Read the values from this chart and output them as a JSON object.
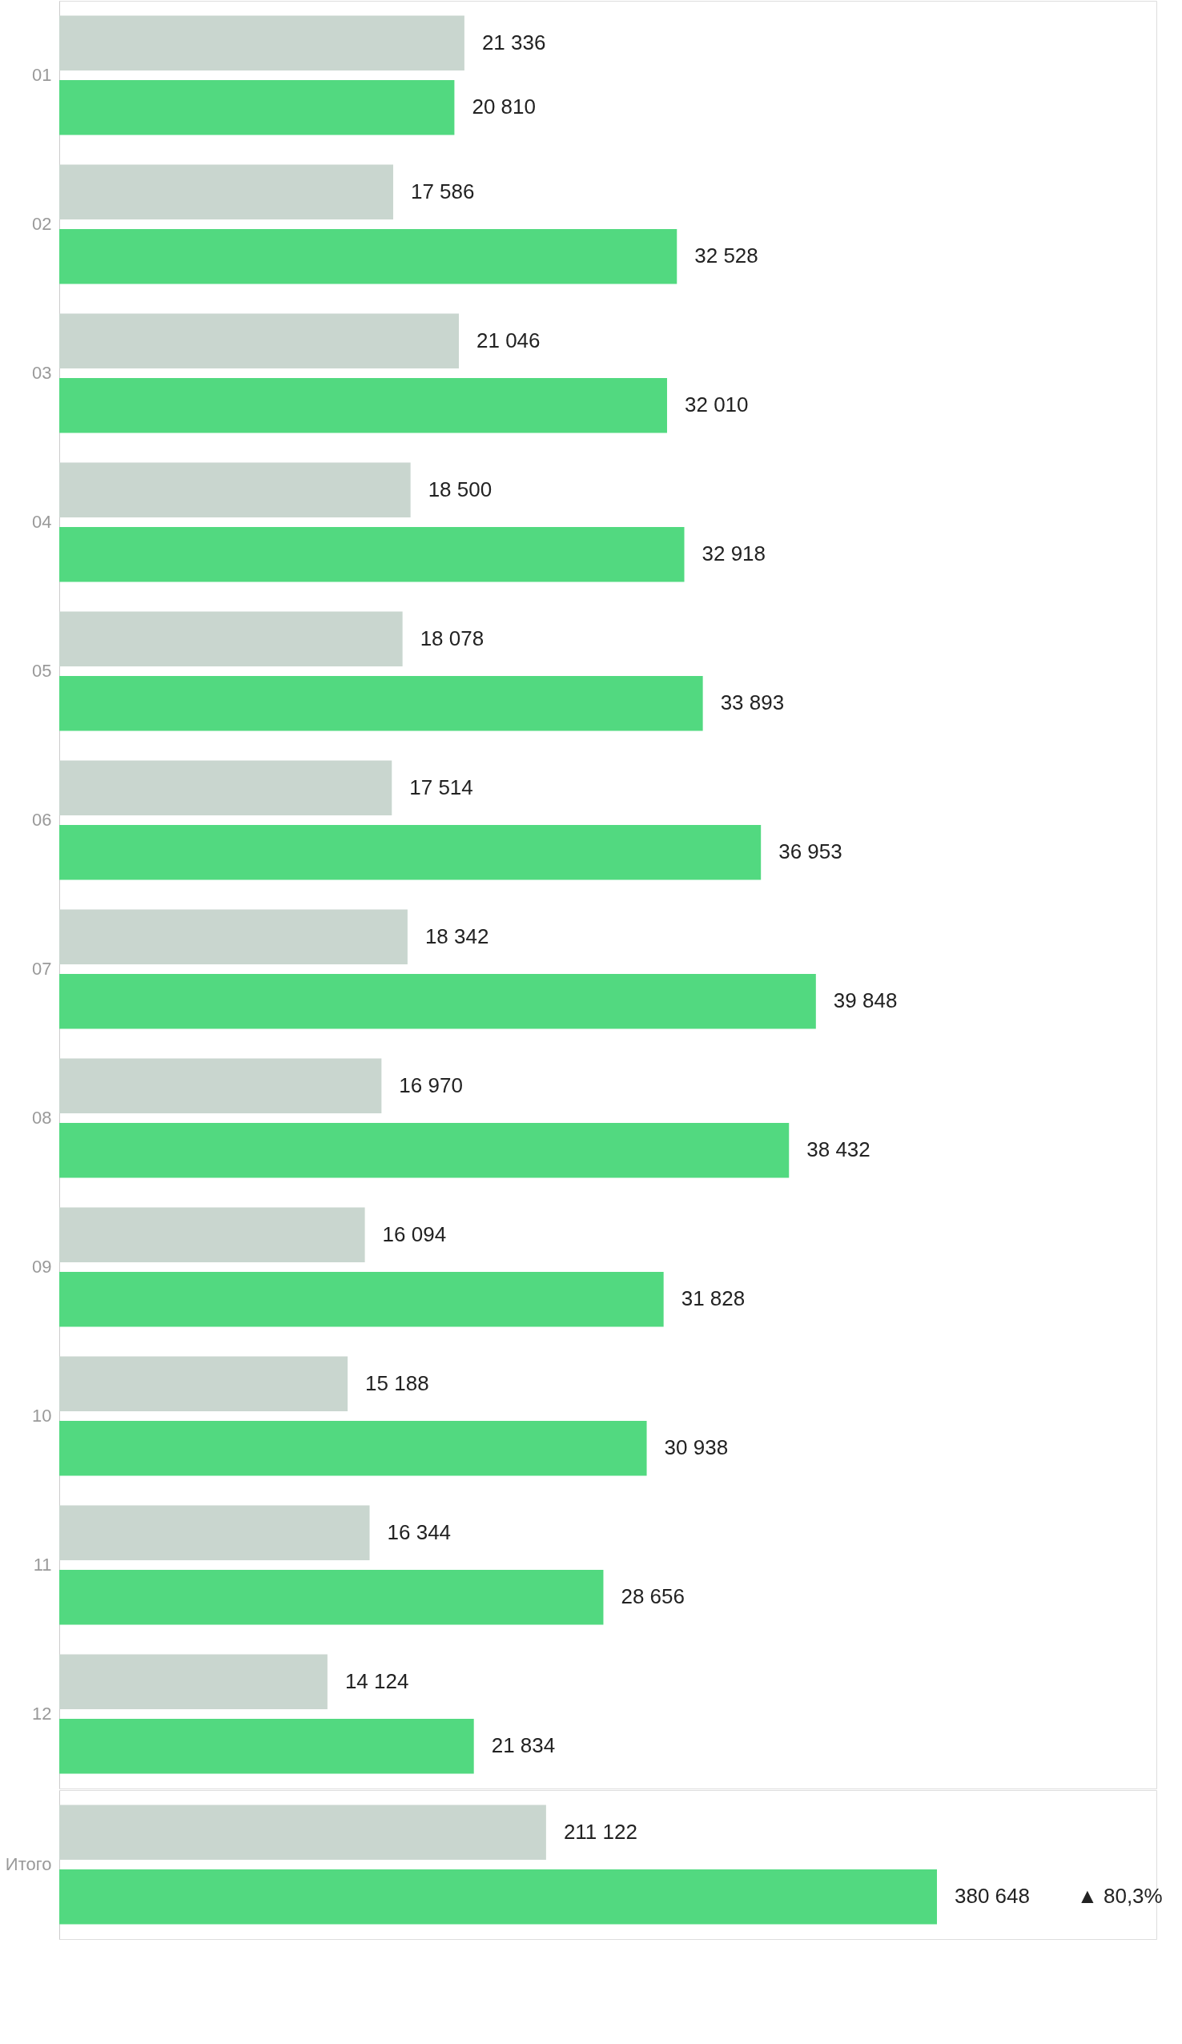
{
  "chart_data": [
    {
      "type": "bar",
      "orientation": "horizontal",
      "categories": [
        "01",
        "02",
        "03",
        "04",
        "05",
        "06",
        "07",
        "08",
        "09",
        "10",
        "11",
        "12"
      ],
      "tick_labels": "y",
      "grid": false,
      "legend": false,
      "series": [
        {
          "color": "#c9d6cf",
          "values": [
            21336,
            17586,
            21046,
            18500,
            18078,
            17514,
            18342,
            16970,
            16094,
            15188,
            16344,
            14124
          ],
          "value_labels": [
            "21 336",
            "17 586",
            "21 046",
            "18 500",
            "18 078",
            "17 514",
            "18 342",
            "16 970",
            "16 094",
            "15 188",
            "16 344",
            "14 124"
          ]
        },
        {
          "color": "#52d980",
          "values": [
            20810,
            32528,
            32010,
            32918,
            33893,
            36953,
            39848,
            38432,
            31828,
            30938,
            28656,
            21834
          ],
          "value_labels": [
            "20 810",
            "32 528",
            "32 010",
            "32 918",
            "33 893",
            "36 953",
            "39 848",
            "38 432",
            "31 828",
            "30 938",
            "28 656",
            "21 834"
          ]
        }
      ]
    },
    {
      "type": "bar",
      "orientation": "horizontal",
      "categories": [
        "Итого"
      ],
      "tick_labels": "y",
      "grid": false,
      "legend": false,
      "series": [
        {
          "color": "#c9d6cf",
          "values": [
            211122
          ],
          "value_labels": [
            "211 122"
          ]
        },
        {
          "color": "#52d980",
          "values": [
            380648
          ],
          "value_labels": [
            "380 648"
          ]
        }
      ],
      "annotations": [
        "▲ 80,3%"
      ]
    }
  ]
}
